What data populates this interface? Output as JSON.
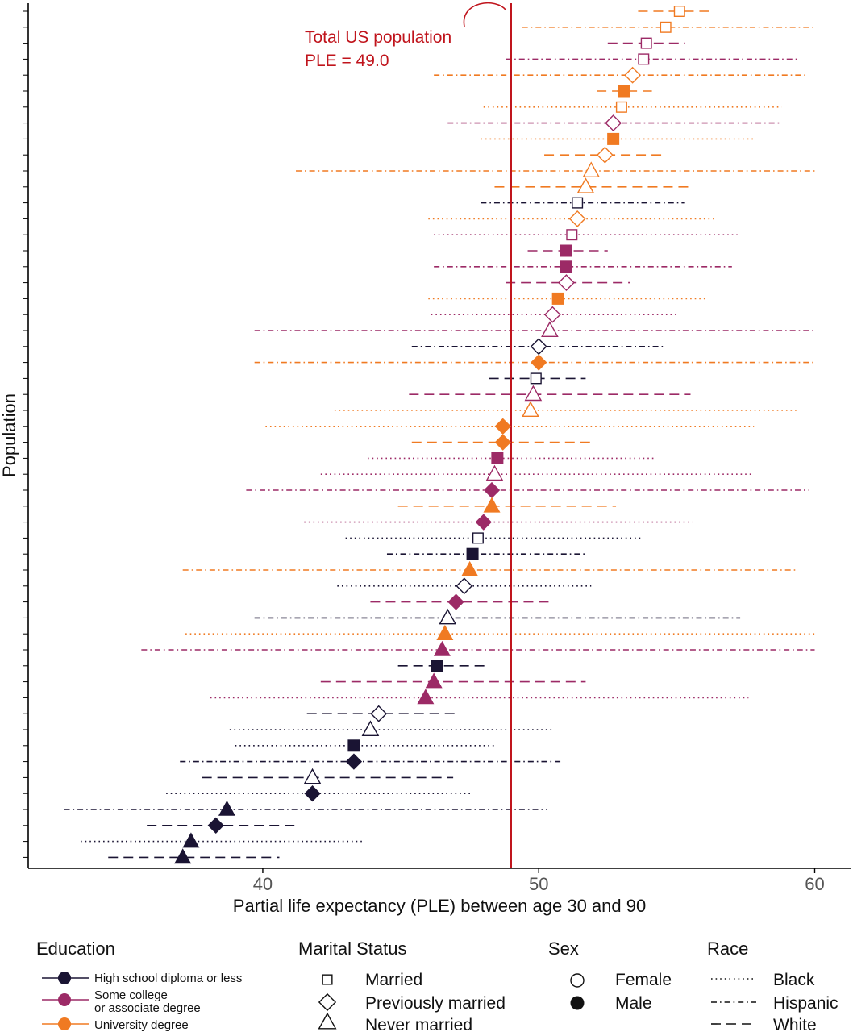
{
  "chart_data": {
    "type": "scatter",
    "subtype": "forest-plot-with-intervals",
    "xlabel": "Partial life expectancy (PLE) between age 30 and 90",
    "ylabel": "Population",
    "xlim": [
      31.5,
      61.3
    ],
    "xticks": [
      40,
      50,
      60
    ],
    "reference_line": {
      "value": 49.0,
      "label_line1": "Total US population",
      "label_line2": "PLE = 49.0",
      "color": "#c0141c"
    },
    "colors": {
      "low": "#1a1433",
      "mid": "#9c2a66",
      "high": "#f07a22",
      "ref": "#c0141c"
    },
    "rows": [
      {
        "v": 55.1,
        "lo": 53.6,
        "hi": 56.3,
        "edu": "high",
        "mar": "married",
        "sex": "F",
        "race": "white"
      },
      {
        "v": 54.6,
        "lo": 49.4,
        "hi": 60.0,
        "edu": "high",
        "mar": "married",
        "sex": "F",
        "race": "hispanic"
      },
      {
        "v": 53.9,
        "lo": 52.5,
        "hi": 55.3,
        "edu": "mid",
        "mar": "married",
        "sex": "F",
        "race": "white"
      },
      {
        "v": 53.8,
        "lo": 48.8,
        "hi": 59.4,
        "edu": "mid",
        "mar": "married",
        "sex": "F",
        "race": "hispanic"
      },
      {
        "v": 53.4,
        "lo": 46.2,
        "hi": 59.7,
        "edu": "high",
        "mar": "prev",
        "sex": "F",
        "race": "hispanic"
      },
      {
        "v": 53.1,
        "lo": 52.1,
        "hi": 54.1,
        "edu": "high",
        "mar": "married",
        "sex": "M",
        "race": "white"
      },
      {
        "v": 53.0,
        "lo": 48.0,
        "hi": 58.8,
        "edu": "high",
        "mar": "married",
        "sex": "F",
        "race": "black"
      },
      {
        "v": 52.7,
        "lo": 46.7,
        "hi": 58.8,
        "edu": "mid",
        "mar": "prev",
        "sex": "F",
        "race": "hispanic"
      },
      {
        "v": 52.7,
        "lo": 47.9,
        "hi": 57.8,
        "edu": "high",
        "mar": "married",
        "sex": "M",
        "race": "black"
      },
      {
        "v": 52.4,
        "lo": 50.2,
        "hi": 54.6,
        "edu": "high",
        "mar": "prev",
        "sex": "F",
        "race": "white"
      },
      {
        "v": 51.9,
        "lo": 41.2,
        "hi": 60.0,
        "edu": "high",
        "mar": "never",
        "sex": "F",
        "race": "hispanic"
      },
      {
        "v": 51.7,
        "lo": 48.4,
        "hi": 55.5,
        "edu": "high",
        "mar": "never",
        "sex": "F",
        "race": "white"
      },
      {
        "v": 51.4,
        "lo": 47.9,
        "hi": 55.3,
        "edu": "low",
        "mar": "married",
        "sex": "F",
        "race": "hispanic"
      },
      {
        "v": 51.4,
        "lo": 46.0,
        "hi": 56.4,
        "edu": "high",
        "mar": "prev",
        "sex": "F",
        "race": "black"
      },
      {
        "v": 51.2,
        "lo": 46.2,
        "hi": 57.2,
        "edu": "mid",
        "mar": "married",
        "sex": "F",
        "race": "black"
      },
      {
        "v": 51.0,
        "lo": 49.6,
        "hi": 52.5,
        "edu": "mid",
        "mar": "married",
        "sex": "M",
        "race": "white"
      },
      {
        "v": 51.0,
        "lo": 46.2,
        "hi": 57.0,
        "edu": "mid",
        "mar": "married",
        "sex": "M",
        "race": "hispanic"
      },
      {
        "v": 51.0,
        "lo": 48.8,
        "hi": 53.3,
        "edu": "mid",
        "mar": "prev",
        "sex": "F",
        "race": "white"
      },
      {
        "v": 50.7,
        "lo": 46.0,
        "hi": 56.1,
        "edu": "high",
        "mar": "married",
        "sex": "M",
        "race": "black"
      },
      {
        "v": 50.5,
        "lo": 46.1,
        "hi": 55.0,
        "edu": "mid",
        "mar": "prev",
        "sex": "F",
        "race": "black"
      },
      {
        "v": 50.4,
        "lo": 39.7,
        "hi": 60.0,
        "edu": "mid",
        "mar": "never",
        "sex": "F",
        "race": "hispanic"
      },
      {
        "v": 50.0,
        "lo": 45.4,
        "hi": 54.5,
        "edu": "low",
        "mar": "prev",
        "sex": "F",
        "race": "hispanic"
      },
      {
        "v": 50.0,
        "lo": 39.7,
        "hi": 60.0,
        "edu": "high",
        "mar": "prev",
        "sex": "M",
        "race": "hispanic"
      },
      {
        "v": 49.9,
        "lo": 48.2,
        "hi": 51.7,
        "edu": "low",
        "mar": "married",
        "sex": "F",
        "race": "white"
      },
      {
        "v": 49.8,
        "lo": 45.3,
        "hi": 55.5,
        "edu": "mid",
        "mar": "never",
        "sex": "F",
        "race": "white"
      },
      {
        "v": 49.7,
        "lo": 42.6,
        "hi": 59.4,
        "edu": "high",
        "mar": "never",
        "sex": "F",
        "race": "black"
      },
      {
        "v": 48.7,
        "lo": 40.1,
        "hi": 57.8,
        "edu": "high",
        "mar": "prev",
        "sex": "M",
        "race": "black"
      },
      {
        "v": 48.7,
        "lo": 45.4,
        "hi": 52.0,
        "edu": "high",
        "mar": "prev",
        "sex": "M",
        "race": "white"
      },
      {
        "v": 48.5,
        "lo": 43.8,
        "hi": 54.2,
        "edu": "mid",
        "mar": "married",
        "sex": "M",
        "race": "black"
      },
      {
        "v": 48.4,
        "lo": 42.1,
        "hi": 57.8,
        "edu": "mid",
        "mar": "never",
        "sex": "F",
        "race": "black"
      },
      {
        "v": 48.3,
        "lo": 39.4,
        "hi": 59.8,
        "edu": "mid",
        "mar": "prev",
        "sex": "M",
        "race": "hispanic"
      },
      {
        "v": 48.3,
        "lo": 44.9,
        "hi": 52.8,
        "edu": "high",
        "mar": "never",
        "sex": "M",
        "race": "white"
      },
      {
        "v": 48.0,
        "lo": 41.5,
        "hi": 55.6,
        "edu": "mid",
        "mar": "prev",
        "sex": "M",
        "race": "black"
      },
      {
        "v": 47.8,
        "lo": 43.0,
        "hi": 53.7,
        "edu": "low",
        "mar": "married",
        "sex": "F",
        "race": "black"
      },
      {
        "v": 47.6,
        "lo": 44.5,
        "hi": 51.7,
        "edu": "low",
        "mar": "married",
        "sex": "M",
        "race": "hispanic"
      },
      {
        "v": 47.5,
        "lo": 37.1,
        "hi": 59.4,
        "edu": "high",
        "mar": "never",
        "sex": "M",
        "race": "hispanic"
      },
      {
        "v": 47.3,
        "lo": 42.7,
        "hi": 51.9,
        "edu": "low",
        "mar": "prev",
        "sex": "F",
        "race": "black"
      },
      {
        "v": 47.0,
        "lo": 43.9,
        "hi": 50.4,
        "edu": "mid",
        "mar": "prev",
        "sex": "M",
        "race": "white"
      },
      {
        "v": 46.7,
        "lo": 39.7,
        "hi": 57.3,
        "edu": "low",
        "mar": "never",
        "sex": "F",
        "race": "hispanic"
      },
      {
        "v": 46.6,
        "lo": 37.2,
        "hi": 60.0,
        "edu": "high",
        "mar": "never",
        "sex": "M",
        "race": "black"
      },
      {
        "v": 46.5,
        "lo": 35.6,
        "hi": 60.0,
        "edu": "mid",
        "mar": "never",
        "sex": "M",
        "race": "hispanic"
      },
      {
        "v": 46.3,
        "lo": 44.9,
        "hi": 48.1,
        "edu": "low",
        "mar": "married",
        "sex": "M",
        "race": "white"
      },
      {
        "v": 46.2,
        "lo": 42.1,
        "hi": 51.7,
        "edu": "mid",
        "mar": "never",
        "sex": "M",
        "race": "white"
      },
      {
        "v": 45.9,
        "lo": 38.1,
        "hi": 57.6,
        "edu": "mid",
        "mar": "never",
        "sex": "M",
        "race": "black"
      },
      {
        "v": 44.2,
        "lo": 41.6,
        "hi": 47.1,
        "edu": "low",
        "mar": "prev",
        "sex": "F",
        "race": "white"
      },
      {
        "v": 43.9,
        "lo": 38.8,
        "hi": 50.6,
        "edu": "low",
        "mar": "never",
        "sex": "F",
        "race": "black"
      },
      {
        "v": 43.3,
        "lo": 39.0,
        "hi": 48.4,
        "edu": "low",
        "mar": "married",
        "sex": "M",
        "race": "black"
      },
      {
        "v": 43.3,
        "lo": 37.0,
        "hi": 50.9,
        "edu": "low",
        "mar": "prev",
        "sex": "M",
        "race": "hispanic"
      },
      {
        "v": 41.8,
        "lo": 37.8,
        "hi": 46.9,
        "edu": "low",
        "mar": "never",
        "sex": "F",
        "race": "white"
      },
      {
        "v": 41.8,
        "lo": 36.5,
        "hi": 47.6,
        "edu": "low",
        "mar": "prev",
        "sex": "M",
        "race": "black"
      },
      {
        "v": 38.7,
        "lo": 32.8,
        "hi": 50.3,
        "edu": "low",
        "mar": "never",
        "sex": "M",
        "race": "hispanic"
      },
      {
        "v": 38.3,
        "lo": 35.8,
        "hi": 41.3,
        "edu": "low",
        "mar": "prev",
        "sex": "M",
        "race": "white"
      },
      {
        "v": 37.4,
        "lo": 33.4,
        "hi": 43.6,
        "edu": "low",
        "mar": "never",
        "sex": "M",
        "race": "black"
      },
      {
        "v": 37.1,
        "lo": 34.4,
        "hi": 40.6,
        "edu": "low",
        "mar": "never",
        "sex": "M",
        "race": "white"
      }
    ],
    "legend": {
      "education": {
        "title": "Education",
        "items": [
          {
            "key": "low",
            "label": "High school diploma or less"
          },
          {
            "key": "mid",
            "label_line1": "Some college",
            "label_line2": "or associate degree"
          },
          {
            "key": "high",
            "label": "University degree"
          }
        ]
      },
      "marital": {
        "title": "Marital Status",
        "items": [
          {
            "key": "married",
            "label": "Married"
          },
          {
            "key": "prev",
            "label": "Previously married"
          },
          {
            "key": "never",
            "label": "Never married"
          }
        ]
      },
      "sex": {
        "title": "Sex",
        "items": [
          {
            "key": "F",
            "label": "Female"
          },
          {
            "key": "M",
            "label": "Male"
          }
        ]
      },
      "race": {
        "title": "Race",
        "items": [
          {
            "key": "black",
            "label": "Black"
          },
          {
            "key": "hispanic",
            "label": "Hispanic"
          },
          {
            "key": "white",
            "label": "White"
          }
        ]
      }
    }
  }
}
